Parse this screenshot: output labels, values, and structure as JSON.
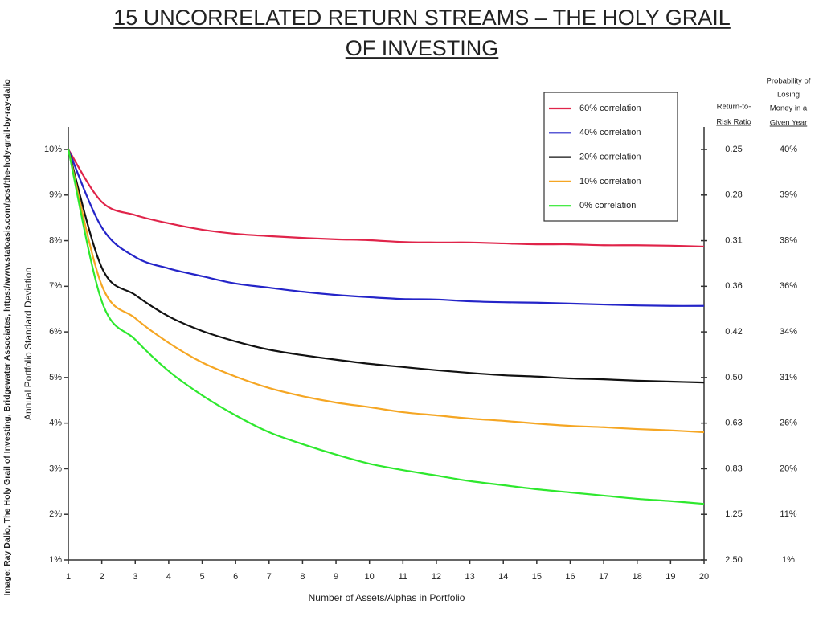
{
  "chart_data": {
    "type": "line",
    "title": [
      "15 UNCORRELATED RETURN STREAMS – THE HOLY GRAIL",
      "OF INVESTING"
    ],
    "source": "Image: Ray Dalio, The Holy Grail of Investing, Bridgewater Associates, https://www.statoasis.com/post/the-holy-grail-by-ray-dalio",
    "x_label": "Number of Assets/Alphas in Portfolio",
    "y_label": "Annual Portfolio Standard Deviation",
    "x": [
      1,
      2,
      3,
      4,
      5,
      6,
      7,
      8,
      9,
      10,
      11,
      12,
      13,
      14,
      15,
      16,
      17,
      18,
      19,
      20
    ],
    "xlim": [
      1,
      20
    ],
    "xticks": [
      1,
      2,
      3,
      4,
      5,
      6,
      7,
      8,
      9,
      10,
      11,
      12,
      13,
      14,
      15,
      16,
      17,
      18,
      19,
      20
    ],
    "ylim": [
      1,
      10
    ],
    "yticks": [
      {
        "value": 1,
        "label": "1%"
      },
      {
        "value": 2,
        "label": "2%"
      },
      {
        "value": 3,
        "label": "3%"
      },
      {
        "value": 4,
        "label": "4%"
      },
      {
        "value": 5,
        "label": "5%"
      },
      {
        "value": 6,
        "label": "6%"
      },
      {
        "value": 7,
        "label": "7%"
      },
      {
        "value": 8,
        "label": "8%"
      },
      {
        "value": 9,
        "label": "9%"
      },
      {
        "value": 10,
        "label": "10%"
      }
    ],
    "right_columns": [
      {
        "header": [
          "Return-to-",
          "Risk Ratio"
        ],
        "ticks": [
          {
            "value": 10,
            "label": "0.25"
          },
          {
            "value": 9,
            "label": "0.28"
          },
          {
            "value": 8,
            "label": "0.31"
          },
          {
            "value": 7,
            "label": "0.36"
          },
          {
            "value": 6,
            "label": "0.42"
          },
          {
            "value": 5,
            "label": "0.50"
          },
          {
            "value": 4,
            "label": "0.63"
          },
          {
            "value": 3,
            "label": "0.83"
          },
          {
            "value": 2,
            "label": "1.25"
          },
          {
            "value": 1,
            "label": "2.50"
          }
        ]
      },
      {
        "header": [
          "Probability of",
          "Losing",
          "Money in a",
          "Given Year"
        ],
        "ticks": [
          {
            "value": 10,
            "label": "40%"
          },
          {
            "value": 9,
            "label": "39%"
          },
          {
            "value": 8,
            "label": "38%"
          },
          {
            "value": 7,
            "label": "36%"
          },
          {
            "value": 6,
            "label": "34%"
          },
          {
            "value": 5,
            "label": "31%"
          },
          {
            "value": 4,
            "label": "26%"
          },
          {
            "value": 3,
            "label": "20%"
          },
          {
            "value": 2,
            "label": "11%"
          },
          {
            "value": 1,
            "label": "1%"
          }
        ]
      }
    ],
    "series": [
      {
        "name": "60% correlation",
        "color": "#e0244a",
        "values": [
          10,
          8.85,
          8.56,
          8.38,
          8.24,
          8.15,
          8.1,
          8.06,
          8.03,
          8.01,
          7.97,
          7.96,
          7.96,
          7.94,
          7.92,
          7.92,
          7.9,
          7.9,
          7.89,
          7.87
        ]
      },
      {
        "name": "40% correlation",
        "color": "#2424c8",
        "values": [
          10,
          8.29,
          7.64,
          7.39,
          7.22,
          7.06,
          6.97,
          6.88,
          6.81,
          6.76,
          6.72,
          6.71,
          6.67,
          6.65,
          6.64,
          6.62,
          6.6,
          6.58,
          6.57,
          6.57
        ]
      },
      {
        "name": "20% correlation",
        "color": "#111111",
        "values": [
          10,
          7.41,
          6.81,
          6.34,
          6.02,
          5.79,
          5.61,
          5.49,
          5.39,
          5.3,
          5.23,
          5.16,
          5.1,
          5.05,
          5.02,
          4.98,
          4.96,
          4.93,
          4.91,
          4.89
        ]
      },
      {
        "name": "10% correlation",
        "color": "#f5a623",
        "values": [
          10,
          7.02,
          6.3,
          5.76,
          5.33,
          5.02,
          4.77,
          4.59,
          4.45,
          4.35,
          4.24,
          4.17,
          4.1,
          4.05,
          3.99,
          3.94,
          3.91,
          3.87,
          3.84,
          3.8
        ]
      },
      {
        "name": "0% correlation",
        "color": "#2ee82e",
        "values": [
          10,
          6.67,
          5.83,
          5.14,
          4.61,
          4.17,
          3.8,
          3.54,
          3.31,
          3.11,
          2.97,
          2.85,
          2.73,
          2.64,
          2.55,
          2.48,
          2.41,
          2.34,
          2.29,
          2.23
        ]
      }
    ]
  }
}
